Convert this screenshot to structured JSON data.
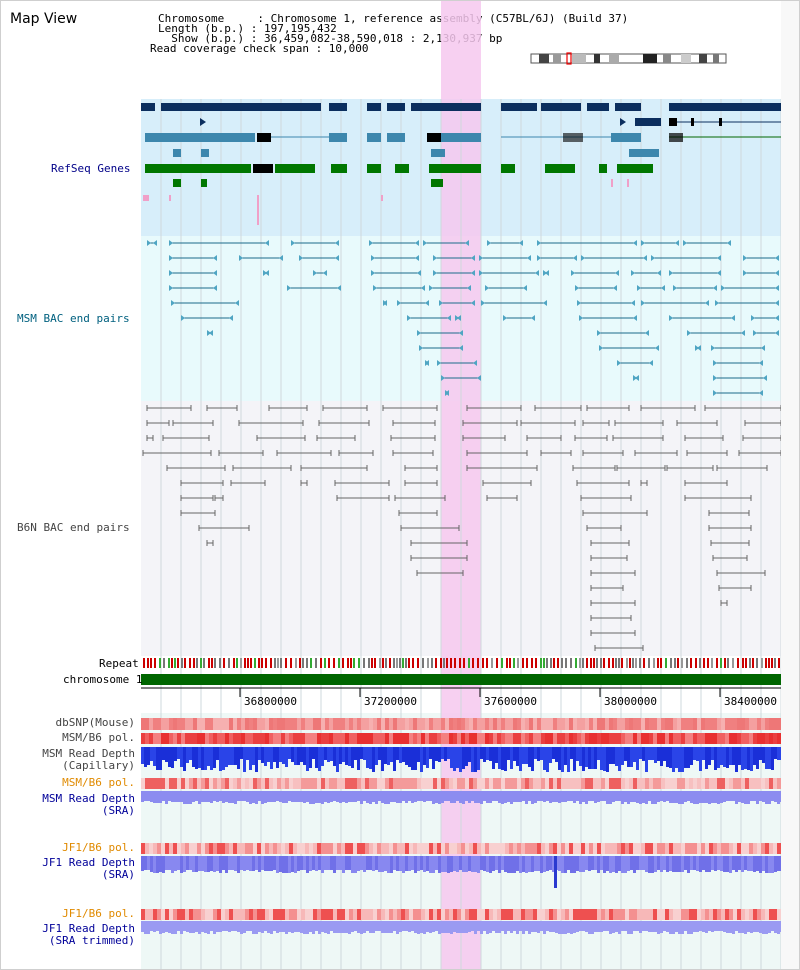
{
  "header": {
    "title": "Map View",
    "lines": [
      "Chromosome     : Chromosome 1, reference assembly (C57BL/6J) (Build 37)",
      "Length (b.p.) : 197,195,432",
      "  Show (b.p.) : 36,459,082-38,590,018 : 2,130,937 bp",
      "Read coverage check span : 10,000"
    ]
  },
  "tracks": {
    "refseq_genes": "RefSeq Genes",
    "msm_bac": "MSM BAC end pairs",
    "b6n_bac": "B6N BAC end pairs",
    "repeat": "Repeat",
    "chromosome": "chromosome 1",
    "dbsnp": "dbSNP(Mouse)",
    "msm_b6_pol_1": "MSM/B6 pol.",
    "msm_read_depth_cap_1": "MSM Read Depth",
    "msm_read_depth_cap_2": "(Capillary)",
    "msm_b6_pol_2": "MSM/B6 pol.",
    "msm_read_depth_sra_1": "MSM Read Depth",
    "msm_read_depth_sra_2": "(SRA)",
    "jf1_b6_pol_1": "JF1/B6 pol.",
    "jf1_read_depth_sra_1": "JF1 Read Depth",
    "jf1_read_depth_sra_2": "(SRA)",
    "jf1_b6_pol_2": "JF1/B6 pol.",
    "jf1_read_depth_trim_1": "JF1 Read Depth",
    "jf1_read_depth_trim_2": "(SRA trimmed)"
  },
  "axis": {
    "ticks": [
      "36800000",
      "37200000",
      "37600000",
      "38000000",
      "38400000"
    ]
  },
  "colors": {
    "refseq_bg": "#d7eefa",
    "msm_bg": "#e8fafc",
    "b6n_bg": "#f4f4f8",
    "highlight": "#f6c8ef",
    "chromosome": "#006600",
    "navy_gene": "#0b2e5e",
    "steel_gene": "#3d87ad",
    "green_gene": "#007700",
    "msm_pair": "#1b6b8a",
    "b6n_pair": "#666666"
  }
}
